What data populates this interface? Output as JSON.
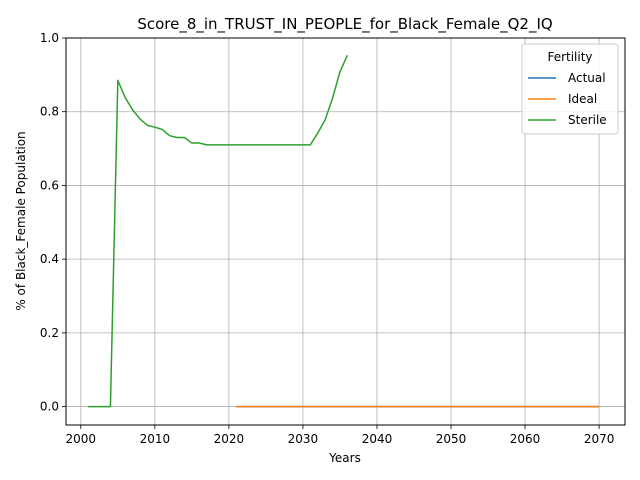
{
  "chart_data": {
    "type": "line",
    "title": "Score_8_in_TRUST_IN_PEOPLE_for_Black_Female_Q2_IQ",
    "xlabel": "Years",
    "ylabel": "% of Black_Female Population",
    "xlim": [
      1998,
      2073.5
    ],
    "ylim": [
      -0.05,
      1.0
    ],
    "xticks": [
      2000,
      2010,
      2020,
      2030,
      2040,
      2050,
      2060,
      2070
    ],
    "yticks": [
      0.0,
      0.2,
      0.4,
      0.6,
      0.8,
      1.0
    ],
    "xtick_labels": [
      "2000",
      "2010",
      "2020",
      "2030",
      "2040",
      "2050",
      "2060",
      "2070"
    ],
    "ytick_labels": [
      "0.0",
      "0.2",
      "0.4",
      "0.6",
      "0.8",
      "1.0"
    ],
    "grid": true,
    "legend": {
      "title": "Fertility",
      "position": "top-right"
    },
    "series": [
      {
        "name": "Actual",
        "color": "#1f77b4",
        "points": [
          [
            2021,
            0.0
          ],
          [
            2070,
            0.0
          ]
        ]
      },
      {
        "name": "Ideal",
        "color": "#ff7f0e",
        "points": [
          [
            2021,
            0.0
          ],
          [
            2070,
            0.0
          ]
        ]
      },
      {
        "name": "Sterile",
        "color": "#2ca02c",
        "points": [
          [
            2001,
            0.0
          ],
          [
            2002,
            0.0
          ],
          [
            2003,
            0.0
          ],
          [
            2004,
            0.0
          ],
          [
            2005,
            0.885
          ],
          [
            2006,
            0.838
          ],
          [
            2007,
            0.805
          ],
          [
            2008,
            0.78
          ],
          [
            2009,
            0.763
          ],
          [
            2010,
            0.758
          ],
          [
            2011,
            0.752
          ],
          [
            2012,
            0.735
          ],
          [
            2013,
            0.73
          ],
          [
            2014,
            0.73
          ],
          [
            2015,
            0.715
          ],
          [
            2016,
            0.715
          ],
          [
            2017,
            0.71
          ],
          [
            2018,
            0.71
          ],
          [
            2019,
            0.71
          ],
          [
            2020,
            0.71
          ],
          [
            2021,
            0.71
          ],
          [
            2022,
            0.71
          ],
          [
            2023,
            0.71
          ],
          [
            2024,
            0.71
          ],
          [
            2025,
            0.71
          ],
          [
            2026,
            0.71
          ],
          [
            2027,
            0.71
          ],
          [
            2028,
            0.71
          ],
          [
            2029,
            0.71
          ],
          [
            2030,
            0.71
          ],
          [
            2031,
            0.71
          ],
          [
            2032,
            0.742
          ],
          [
            2033,
            0.778
          ],
          [
            2034,
            0.837
          ],
          [
            2035,
            0.908
          ],
          [
            2036,
            0.953
          ]
        ]
      }
    ]
  }
}
